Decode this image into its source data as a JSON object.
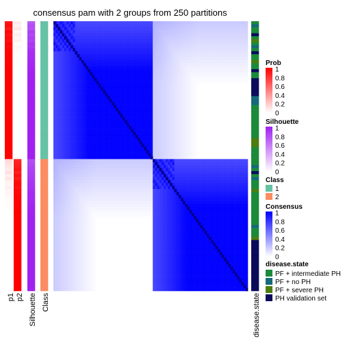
{
  "chart_data": {
    "type": "heatmap",
    "title": "consensus pam with 2 groups from 250 partitions",
    "n_samples": 90,
    "group_sizes": [
      46,
      44
    ],
    "annotation_labels": [
      "p1",
      "p2",
      "Silhouette",
      "Class"
    ],
    "right_annotation_label": "disease.state",
    "legends": {
      "prob": {
        "title": "Prob",
        "ticks": [
          "1",
          "0.8",
          "0.6",
          "0.4",
          "0.2",
          "0"
        ],
        "colors": [
          "#ffffff",
          "#ff0000"
        ]
      },
      "silhouette": {
        "title": "Silhouette",
        "ticks": [
          "1",
          "0.8",
          "0.6",
          "0.4",
          "0.2",
          "0"
        ],
        "colors": [
          "#ffffff",
          "#a020f0"
        ]
      },
      "class": {
        "title": "Class",
        "items": [
          {
            "label": "1",
            "color": "#66c2a5"
          },
          {
            "label": "2",
            "color": "#fc8d62"
          }
        ]
      },
      "consensus": {
        "title": "Consensus",
        "ticks": [
          "1",
          "0.8",
          "0.6",
          "0.4",
          "0.2",
          "0"
        ],
        "colors": [
          "#ffffff",
          "#0000ff"
        ]
      },
      "disease_state": {
        "title": "disease.state",
        "items": [
          {
            "label": "PF + intermediate PH",
            "color": "#1b8a3a"
          },
          {
            "label": "PF + no PH",
            "color": "#16697a"
          },
          {
            "label": "PF + severe PH",
            "color": "#4c7d0e"
          },
          {
            "label": "PH validation set",
            "color": "#0b0b5c"
          }
        ]
      }
    },
    "disease_state_sequence": [
      0,
      1,
      0,
      0,
      3,
      0,
      2,
      0,
      1,
      0,
      3,
      0,
      0,
      2,
      0,
      0,
      3,
      0,
      0,
      3,
      3,
      3,
      3,
      3,
      3,
      1,
      1,
      1,
      0,
      0,
      0,
      0,
      0,
      0,
      0,
      0,
      0,
      0,
      0,
      2,
      2,
      2,
      0,
      0,
      0,
      0,
      0,
      0,
      1,
      0,
      3,
      0,
      1,
      0,
      0,
      0,
      2,
      0,
      0,
      0,
      0,
      0,
      0,
      0,
      0,
      0,
      0,
      0,
      1,
      0,
      0,
      0,
      2,
      3,
      3,
      3,
      3,
      3,
      3,
      3,
      3,
      3,
      3,
      3,
      3,
      3,
      3,
      3,
      3,
      3
    ],
    "p1_values": [
      0.92,
      0.95,
      0.9,
      0.97,
      0.93,
      0.96,
      0.94,
      0.99,
      0.97,
      0.98,
      0.99,
      0.99,
      0.99,
      0.99,
      0.99,
      1,
      1,
      1,
      1,
      1,
      1,
      1,
      1,
      1,
      1,
      1,
      1,
      1,
      1,
      1,
      1,
      1,
      1,
      1,
      1,
      1,
      1,
      1,
      1,
      1,
      1,
      1,
      1,
      1,
      1,
      1,
      0.15,
      0.12,
      0.1,
      0.08,
      0.12,
      0.06,
      0.1,
      0.05,
      0.04,
      0.06,
      0.03,
      0.04,
      0.02,
      0.02,
      0.01,
      0.01,
      0.01,
      0,
      0,
      0,
      0,
      0,
      0,
      0,
      0,
      0,
      0,
      0,
      0,
      0,
      0,
      0,
      0,
      0,
      0,
      0,
      0,
      0,
      0,
      0,
      0,
      0,
      0,
      0
    ],
    "silhouette_values": [
      0.75,
      0.8,
      0.78,
      0.85,
      0.82,
      0.86,
      0.84,
      0.9,
      0.88,
      0.92,
      0.94,
      0.95,
      0.95,
      0.96,
      0.97,
      0.98,
      0.98,
      0.99,
      1,
      1,
      1,
      1,
      1,
      1,
      1,
      1,
      1,
      1,
      1,
      1,
      1,
      1,
      1,
      1,
      1,
      1,
      1,
      1,
      1,
      1,
      1,
      1,
      1,
      1,
      1,
      1,
      0.8,
      0.82,
      0.84,
      0.85,
      0.86,
      0.88,
      0.89,
      0.9,
      0.92,
      0.92,
      0.94,
      0.95,
      0.95,
      0.96,
      0.97,
      0.98,
      0.98,
      0.99,
      1,
      1,
      1,
      1,
      1,
      1,
      1,
      1,
      1,
      1,
      1,
      1,
      1,
      1,
      1,
      1,
      1,
      1,
      1,
      1,
      1,
      1,
      1,
      1,
      1,
      1
    ]
  }
}
